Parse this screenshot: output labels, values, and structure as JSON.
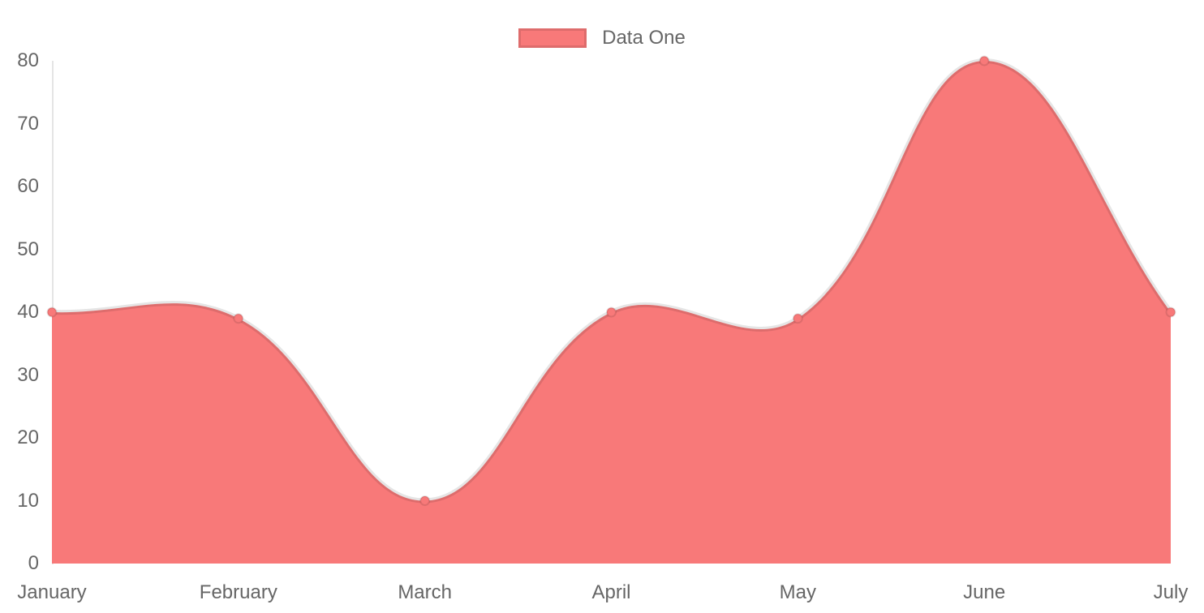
{
  "chart_data": {
    "type": "area",
    "title": "",
    "categories": [
      "January",
      "February",
      "March",
      "April",
      "May",
      "June",
      "July"
    ],
    "series": [
      {
        "name": "Data One",
        "values": [
          40,
          39,
          10,
          40,
          39,
          80,
          40
        ],
        "fill_color": "#f87979",
        "line_color": "rgba(0,0,0,0.10)",
        "point_fill_color": "#f87979",
        "point_border_color": "rgba(0,0,0,0.10)"
      }
    ],
    "xlabel": "",
    "ylabel": "",
    "ylim": [
      0,
      80
    ],
    "y_ticks": [
      0,
      10,
      20,
      30,
      40,
      50,
      60,
      70,
      80
    ],
    "grid": false,
    "legend_position": "top",
    "line_tension": 0.4,
    "axis_color": "rgba(0,0,0,0.10)",
    "tick_text_color": "#666666"
  },
  "legend": {
    "items": [
      {
        "label": "Data One",
        "swatch_color": "#f87979"
      }
    ]
  }
}
